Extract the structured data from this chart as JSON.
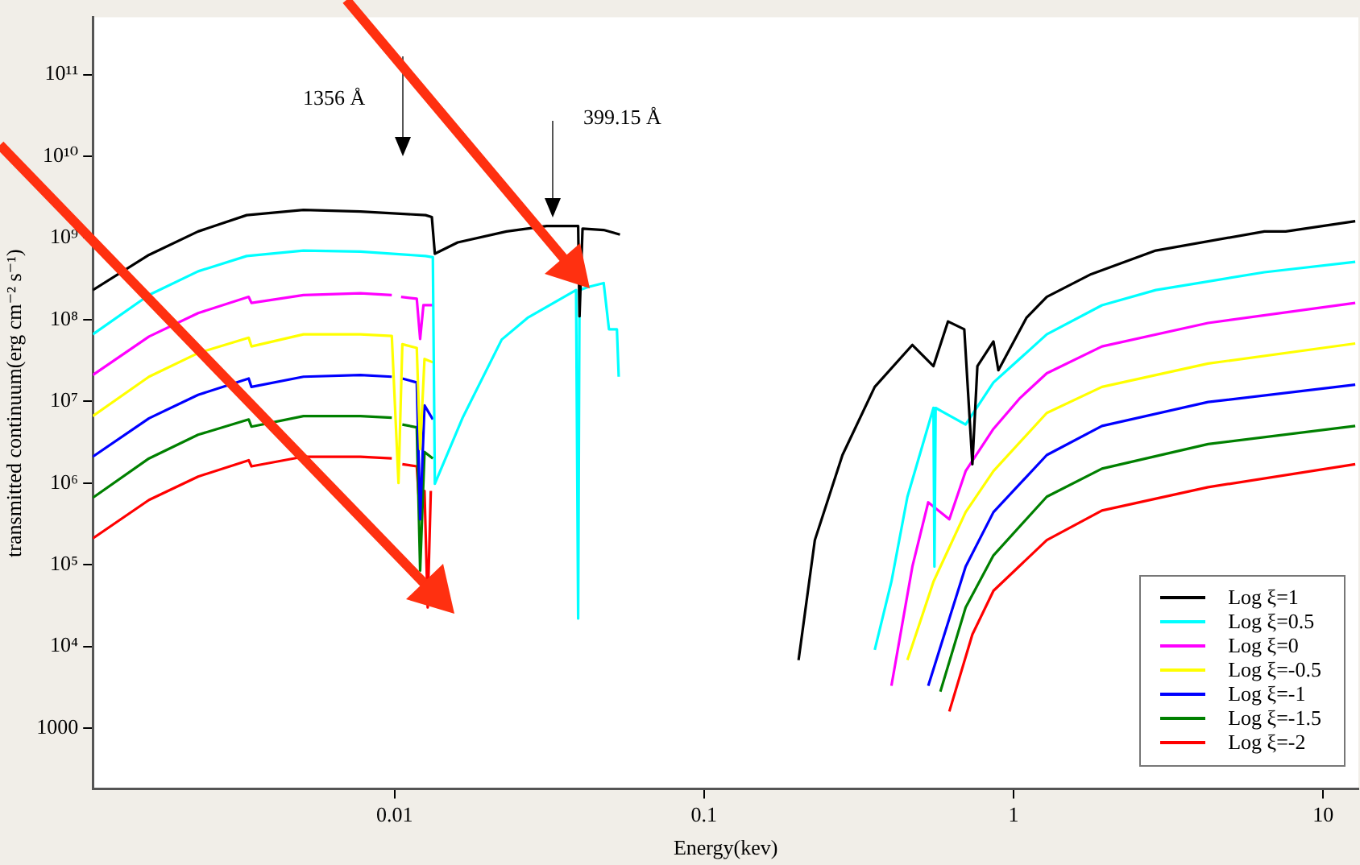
{
  "chart_data": {
    "type": "line",
    "xlabel": "Energy(kev)",
    "ylabel": "transmitted continuum(erg cm⁻² s⁻¹)",
    "log": "xy",
    "xlim": [
      0.00106,
      13
    ],
    "xticks": [
      0.01,
      0.1,
      1,
      10
    ],
    "ylim": [
      180,
      500000000000.0
    ],
    "yticks": [
      1000,
      {
        "value": 10000,
        "label": "10⁴"
      },
      {
        "value": 100000.0,
        "label": "10⁵"
      },
      {
        "value": 1000000.0,
        "label": "10⁶"
      },
      {
        "value": 10000000.0,
        "label": "10⁷"
      },
      {
        "value": 100000000.0,
        "label": "10⁸"
      },
      {
        "value": 1000000000.0,
        "label": "10⁹"
      },
      {
        "value": 10000000000.0,
        "label": "10¹⁰"
      },
      {
        "value": 100000000000.0,
        "label": "10¹¹"
      }
    ],
    "legend": "bottom right",
    "marker": "none",
    "line_style": "solid",
    "annotations": [
      "1356 Å",
      "399.15 Å"
    ],
    "series": [
      {
        "name": "Log ξ=1",
        "color": "#000000",
        "x": [
          0.00106,
          0.00161,
          0.00232,
          0.00333,
          0.00508,
          0.00776,
          0.0126,
          0.0132,
          0.0135,
          0.016,
          0.023,
          0.031,
          0.0392,
          0.0396,
          0.0405,
          0.0474,
          0.0535,
          0.0546,
          0.1,
          0.179,
          0.202,
          0.228,
          0.28,
          0.356,
          0.471,
          0.551,
          0.614,
          0.693,
          0.736,
          0.764,
          0.861,
          0.893,
          1.1,
          1.28,
          1.78,
          2.88,
          6.46,
          7.57,
          12.7
        ],
        "values": [
          230000000.0,
          620000000.0,
          1200000000.0,
          1900000000.0,
          2200000000.0,
          2100000000.0,
          1900000000.0,
          1800000000.0,
          640000000.0,
          880000000.0,
          1200000000.0,
          1400000000.0,
          1400000000.0,
          110000000.0,
          1300000000.0,
          1250000000.0,
          1100000000.0,
          null,
          null,
          null,
          6800.0,
          200000.0,
          2200000.0,
          15000000.0,
          49000000.0,
          27000000.0,
          95000000.0,
          76000000.0,
          1700000.0,
          27000000.0,
          54000000.0,
          24000000.0,
          105000000.0,
          190000000.0,
          360000000.0,
          700000000.0,
          1200000000.0,
          1200000000.0,
          1600000000.0
        ]
      },
      {
        "name": "Log ξ=0.5",
        "color": "#00ffff",
        "x": [
          0.00106,
          0.00161,
          0.00232,
          0.00333,
          0.00508,
          0.00776,
          0.0126,
          0.0133,
          0.0135,
          0.0166,
          0.0222,
          0.0269,
          0.0386,
          0.0392,
          0.0396,
          0.0421,
          0.0474,
          0.0493,
          0.0523,
          0.053,
          0.055,
          0.1,
          0.308,
          0.356,
          0.403,
          0.454,
          0.551,
          0.555,
          0.56,
          0.7,
          0.861,
          1.28,
          1.93,
          2.88,
          6.46,
          12.7
        ],
        "values": [
          66000000.0,
          200000000.0,
          390000000.0,
          600000000.0,
          700000000.0,
          680000000.0,
          600000000.0,
          580000000.0,
          980000.0,
          6300000.0,
          57000000.0,
          105000000.0,
          230000000.0,
          22000.0,
          230000000.0,
          250000000.0,
          280000000.0,
          76000000.0,
          76000000.0,
          20000000.0,
          null,
          null,
          null,
          9100.0,
          62000.0,
          680000.0,
          8300000.0,
          95000.0,
          8300000.0,
          5200000.0,
          17000000.0,
          66000000.0,
          150000000.0,
          230000000.0,
          380000000.0,
          510000000.0
        ]
      },
      {
        "name": "Log ξ=0",
        "color": "#ff00ff",
        "x": [
          0.00106,
          0.00161,
          0.00232,
          0.00338,
          0.00345,
          0.00508,
          0.00776,
          0.0098,
          0.0103,
          0.0105,
          0.0118,
          0.0121,
          0.0124,
          0.0133,
          0.0135,
          0.05,
          0.36,
          0.403,
          0.471,
          0.53,
          0.62,
          0.7,
          0.861,
          1.05,
          1.28,
          1.93,
          4.25,
          12.7
        ],
        "values": [
          21000000.0,
          62000000.0,
          120000000.0,
          190000000.0,
          160000000.0,
          200000000.0,
          210000000.0,
          200000000.0,
          null,
          190000000.0,
          180000000.0,
          58000000.0,
          150000000.0,
          150000000.0,
          null,
          null,
          null,
          3300.0,
          95000.0,
          580000.0,
          360000.0,
          1400000.0,
          4600000.0,
          11000000.0,
          22000000.0,
          47000000.0,
          91000000.0,
          160000000.0
        ]
      },
      {
        "name": "Log ξ=-0.5",
        "color": "#ffff00",
        "x": [
          0.00106,
          0.00161,
          0.00232,
          0.00338,
          0.00345,
          0.00508,
          0.00776,
          0.0098,
          0.0103,
          0.0106,
          0.0118,
          0.0121,
          0.0125,
          0.0133,
          0.0135,
          0.05,
          0.38,
          0.454,
          0.551,
          0.7,
          0.861,
          1.28,
          1.93,
          4.25,
          12.7
        ],
        "values": [
          6600000.0,
          20000000.0,
          39000000.0,
          60000000.0,
          47000000.0,
          66000000.0,
          66000000.0,
          63000000.0,
          1000000.0,
          50000000.0,
          45000000.0,
          2600000.0,
          33000000.0,
          30000000.0,
          null,
          null,
          null,
          6800.0,
          62000.0,
          440000.0,
          1400000.0,
          7200000.0,
          15000000.0,
          29000000.0,
          51000000.0
        ]
      },
      {
        "name": "Log ξ=-1",
        "color": "#0000ff",
        "x": [
          0.00106,
          0.00161,
          0.00232,
          0.00338,
          0.00345,
          0.00508,
          0.00776,
          0.0098,
          0.0103,
          0.0106,
          0.0118,
          0.0121,
          0.0125,
          0.0133,
          0.0135,
          0.05,
          0.41,
          0.53,
          0.7,
          0.861,
          1.28,
          1.93,
          4.25,
          12.7
        ],
        "values": [
          2100000.0,
          6200000.0,
          12000000.0,
          19000000.0,
          15000000.0,
          20000000.0,
          21000000.0,
          20000000.0,
          null,
          19000000.0,
          17000000.0,
          360000.0,
          8900000.0,
          6000000.0,
          null,
          null,
          null,
          3300.0,
          95000.0,
          440000.0,
          2200000.0,
          5000000.0,
          9800000.0,
          16000000.0
        ]
      },
      {
        "name": "Log ξ=-1.5",
        "color": "#008000",
        "x": [
          0.00106,
          0.00161,
          0.00232,
          0.00338,
          0.00345,
          0.00508,
          0.00776,
          0.0098,
          0.0103,
          0.0106,
          0.0118,
          0.0121,
          0.0125,
          0.0133,
          0.0135,
          0.05,
          0.43,
          0.58,
          0.7,
          0.861,
          1.28,
          1.93,
          4.25,
          12.7
        ],
        "values": [
          660000.0,
          2000000.0,
          3900000.0,
          6000000.0,
          4900000.0,
          6600000.0,
          6600000.0,
          6300000.0,
          null,
          5200000.0,
          4800000.0,
          85000.0,
          2400000.0,
          2000000.0,
          null,
          null,
          null,
          2800.0,
          30000.0,
          130000.0,
          680000.0,
          1500000.0,
          3000000.0,
          5000000.0
        ]
      },
      {
        "name": "Log ξ=-2",
        "color": "#ff0000",
        "x": [
          0.00106,
          0.00161,
          0.00232,
          0.00338,
          0.00345,
          0.00508,
          0.00776,
          0.0098,
          0.0103,
          0.0106,
          0.0118,
          0.0121,
          0.0125,
          0.0128,
          0.0131,
          0.0135,
          0.05,
          0.45,
          0.62,
          0.736,
          0.861,
          1.28,
          1.93,
          4.25,
          12.7
        ],
        "values": [
          210000.0,
          620000.0,
          1200000.0,
          1900000.0,
          1600000.0,
          2100000.0,
          2100000.0,
          2000000.0,
          null,
          1700000.0,
          1600000.0,
          360000.0,
          800000.0,
          30000.0,
          800000.0,
          null,
          null,
          null,
          1600.0,
          14000.0,
          48000.0,
          200000.0,
          460000.0,
          890000.0,
          1700000.0
        ]
      }
    ]
  }
}
